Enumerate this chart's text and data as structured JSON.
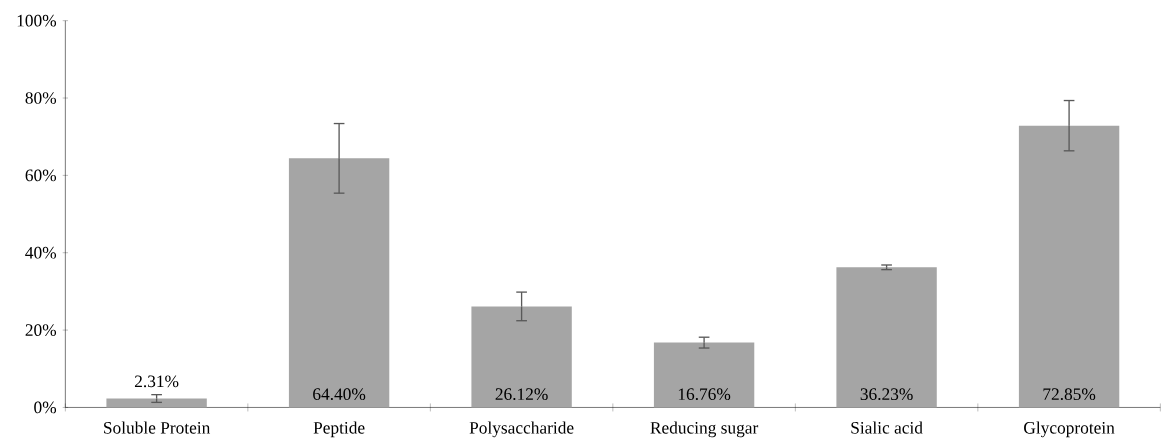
{
  "chart_data": {
    "type": "bar",
    "categories": [
      "Soluble Protein",
      "Peptide",
      "Polysaccharide",
      "Reducing sugar",
      "Sialic acid",
      "Glycoprotein"
    ],
    "values": [
      2.31,
      64.4,
      26.12,
      16.76,
      36.23,
      72.85
    ],
    "value_labels": [
      "2.31%",
      "64.40%",
      "26.12%",
      "16.76%",
      "36.23%",
      "72.85%"
    ],
    "errors": [
      1.0,
      9.0,
      3.7,
      1.4,
      0.6,
      6.5
    ],
    "color": "#a5a5a5",
    "ylim": [
      0,
      100
    ],
    "yticks": [
      {
        "value": 0,
        "label": "0%"
      },
      {
        "value": 20,
        "label": "20%"
      },
      {
        "value": 40,
        "label": "40%"
      },
      {
        "value": 60,
        "label": "60%"
      },
      {
        "value": 80,
        "label": "80%"
      },
      {
        "value": 100,
        "label": "100%"
      }
    ],
    "grid": false
  }
}
